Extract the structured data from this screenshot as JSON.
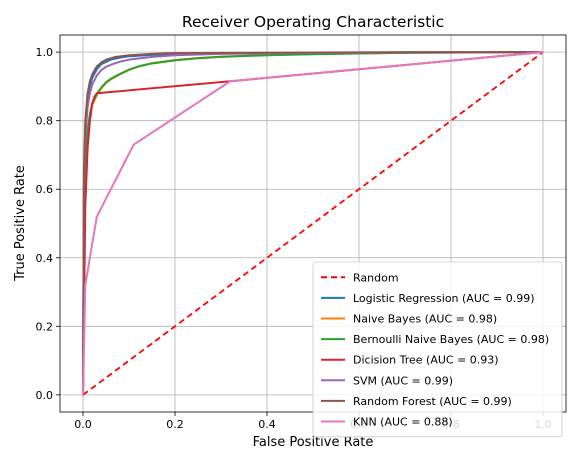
{
  "chart_data": {
    "type": "line",
    "title": "Receiver Operating Characteristic",
    "xlabel": "False Positive Rate",
    "ylabel": "True Positive Rate",
    "xlim": [
      -0.05,
      1.05
    ],
    "ylim": [
      -0.05,
      1.05
    ],
    "xticks": [
      "0.0",
      "0.2",
      "0.4",
      "0.6",
      "0.8",
      "1.0"
    ],
    "yticks": [
      "0.0",
      "0.2",
      "0.4",
      "0.6",
      "0.8",
      "1.0"
    ],
    "grid": true,
    "legend_position": "lower-right",
    "series": [
      {
        "name": "Random",
        "color": "#ff0000",
        "dash": true,
        "x": [
          0,
          1
        ],
        "y": [
          0,
          1
        ]
      },
      {
        "name": "Logistic Regression (AUC = 0.99)",
        "color": "#1f77b4",
        "x": [
          0,
          0.002,
          0.005,
          0.01,
          0.015,
          0.02,
          0.03,
          0.04,
          0.06,
          0.08,
          0.1,
          0.15,
          0.2,
          0.3,
          0.5,
          0.7,
          1.0
        ],
        "y": [
          0,
          0.62,
          0.78,
          0.86,
          0.9,
          0.925,
          0.95,
          0.965,
          0.978,
          0.984,
          0.988,
          0.992,
          0.994,
          0.996,
          0.998,
          0.999,
          1.0
        ]
      },
      {
        "name": "Naive Bayes (AUC = 0.98)",
        "color": "#ff7f0e",
        "x": [
          0,
          0.003,
          0.006,
          0.01,
          0.015,
          0.02,
          0.03,
          0.04,
          0.05,
          0.06,
          0.08,
          0.1,
          0.12,
          0.15,
          0.2,
          0.25,
          0.3,
          0.4,
          0.5,
          0.7,
          1.0
        ],
        "y": [
          0,
          0.55,
          0.68,
          0.76,
          0.81,
          0.845,
          0.875,
          0.895,
          0.91,
          0.92,
          0.935,
          0.948,
          0.958,
          0.968,
          0.977,
          0.983,
          0.987,
          0.992,
          0.995,
          0.998,
          1.0
        ]
      },
      {
        "name": "Bernoulli Naive Bayes (AUC = 0.98)",
        "color": "#2ca02c",
        "x": [
          0,
          0.003,
          0.006,
          0.01,
          0.015,
          0.02,
          0.03,
          0.04,
          0.05,
          0.06,
          0.08,
          0.1,
          0.12,
          0.15,
          0.2,
          0.25,
          0.3,
          0.4,
          0.5,
          0.7,
          1.0
        ],
        "y": [
          0,
          0.56,
          0.69,
          0.77,
          0.82,
          0.85,
          0.878,
          0.897,
          0.912,
          0.922,
          0.936,
          0.949,
          0.958,
          0.967,
          0.976,
          0.982,
          0.986,
          0.991,
          0.994,
          0.998,
          1.0
        ]
      },
      {
        "name": "Dicision Tree (AUC = 0.93)",
        "color": "#d62728",
        "x": [
          0,
          0.005,
          0.01,
          0.015,
          0.02,
          0.025,
          0.03,
          0.32,
          1.0
        ],
        "y": [
          0,
          0.55,
          0.72,
          0.8,
          0.85,
          0.87,
          0.88,
          0.915,
          1.0
        ]
      },
      {
        "name": "SVM (AUC = 0.99)",
        "color": "#9467bd",
        "x": [
          0,
          0.002,
          0.005,
          0.01,
          0.015,
          0.02,
          0.03,
          0.04,
          0.05,
          0.06,
          0.08,
          0.1,
          0.15,
          0.2,
          0.3,
          0.5,
          0.7,
          1.0
        ],
        "y": [
          0,
          0.6,
          0.75,
          0.84,
          0.88,
          0.905,
          0.932,
          0.948,
          0.957,
          0.963,
          0.972,
          0.978,
          0.986,
          0.991,
          0.995,
          0.998,
          0.999,
          1.0
        ]
      },
      {
        "name": "Random Forest (AUC = 0.99)",
        "color": "#8c564b",
        "x": [
          0,
          0.002,
          0.005,
          0.01,
          0.015,
          0.02,
          0.03,
          0.04,
          0.05,
          0.07,
          0.1,
          0.15,
          0.2,
          0.3,
          0.5,
          0.7,
          1.0
        ],
        "y": [
          0,
          0.65,
          0.8,
          0.88,
          0.915,
          0.935,
          0.958,
          0.97,
          0.978,
          0.986,
          0.991,
          0.995,
          0.997,
          0.998,
          0.999,
          1.0,
          1.0
        ]
      },
      {
        "name": "KNN (AUC = 0.88)",
        "color": "#e377c2",
        "x": [
          0,
          0.005,
          0.03,
          0.11,
          0.32,
          1.0
        ],
        "y": [
          0,
          0.32,
          0.52,
          0.73,
          0.915,
          1.0
        ]
      }
    ]
  }
}
